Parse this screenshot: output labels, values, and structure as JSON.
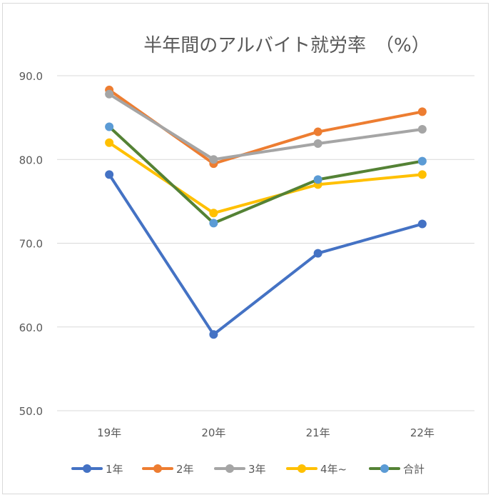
{
  "chart_data": {
    "type": "line",
    "title": "半年間のアルバイト就労率　（%）",
    "categories": [
      "19年",
      "20年",
      "21年",
      "22年"
    ],
    "ylim": [
      50,
      90
    ],
    "yticks": [
      "90.0",
      "80.0",
      "70.0",
      "60.0",
      "50.0"
    ],
    "ytick_values": [
      90,
      80,
      70,
      60,
      50
    ],
    "grid": true,
    "legend_position": "bottom",
    "series": [
      {
        "name": "1年",
        "values": [
          78.2,
          59.1,
          68.8,
          72.3
        ],
        "color": "#4472C4"
      },
      {
        "name": "2年",
        "values": [
          88.3,
          79.5,
          83.3,
          85.7
        ],
        "color": "#ED7D31"
      },
      {
        "name": "3年",
        "values": [
          87.8,
          80.0,
          81.9,
          83.6
        ],
        "color": "#A5A5A5"
      },
      {
        "name": "4年~",
        "values": [
          82.0,
          73.6,
          77.0,
          78.2
        ],
        "color": "#FFC000"
      },
      {
        "name": "合計",
        "values": [
          83.9,
          72.4,
          77.6,
          79.8
        ],
        "color": "#548235",
        "marker_color": "#5B9BD5"
      }
    ]
  }
}
